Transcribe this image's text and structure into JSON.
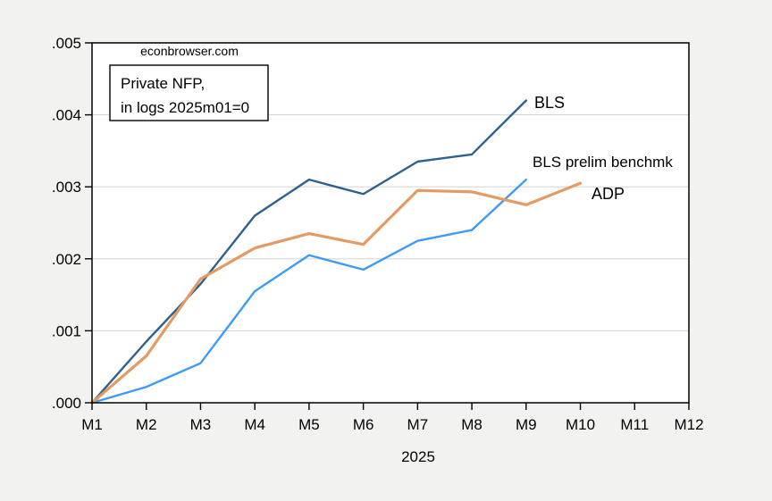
{
  "watermark": "econbrowser.com",
  "note_box": {
    "line1": "Private NFP,",
    "line2": "in logs 2025m01=0"
  },
  "colors": {
    "background": "#f2f2f1",
    "plot_background": "#ffffff",
    "gridline": "#d8d8d8",
    "axis": "#000000",
    "bls_line": "#2f608d",
    "bls_label": "#10497e",
    "prelim_line": "#3d9bf5",
    "prelim_label": "#3d9bf5",
    "adp_line": "#e49a62",
    "adp_label": "#e0821c"
  },
  "chart_data": {
    "type": "line",
    "title": "Private NFP, in logs 2025m01=0",
    "xlabel": "2025",
    "ylabel": "",
    "categories": [
      "M1",
      "M2",
      "M3",
      "M4",
      "M5",
      "M6",
      "M7",
      "M8",
      "M9",
      "M10",
      "M11",
      "M12"
    ],
    "ylim": [
      0,
      0.005
    ],
    "grid": true,
    "legend_position": "inline-labels-right-of-lines",
    "y_ticks": [
      {
        "label": ".000",
        "value": 0.0
      },
      {
        "label": ".001",
        "value": 0.001
      },
      {
        "label": ".002",
        "value": 0.002
      },
      {
        "label": ".003",
        "value": 0.003
      },
      {
        "label": ".004",
        "value": 0.004
      },
      {
        "label": ".005",
        "value": 0.005
      }
    ],
    "series": [
      {
        "name": "BLS",
        "color": "#2f608d",
        "label_color": "#10497e",
        "values": [
          0.0,
          0.00085,
          0.00165,
          0.0026,
          0.0031,
          0.0029,
          0.00335,
          0.00345,
          0.0042
        ]
      },
      {
        "name": "BLS prelim benchmk",
        "color": "#3d9bf5",
        "label_color": "#3d9bf5",
        "values": [
          0.0,
          0.00022,
          0.00055,
          0.00155,
          0.00205,
          0.00185,
          0.00225,
          0.0024,
          0.0031
        ]
      },
      {
        "name": "ADP",
        "color": "#e49a62",
        "label_color": "#e0821c",
        "values": [
          0.0,
          0.00065,
          0.00172,
          0.00215,
          0.00235,
          0.0022,
          0.00295,
          0.00293,
          0.00275,
          0.00305
        ]
      }
    ]
  }
}
